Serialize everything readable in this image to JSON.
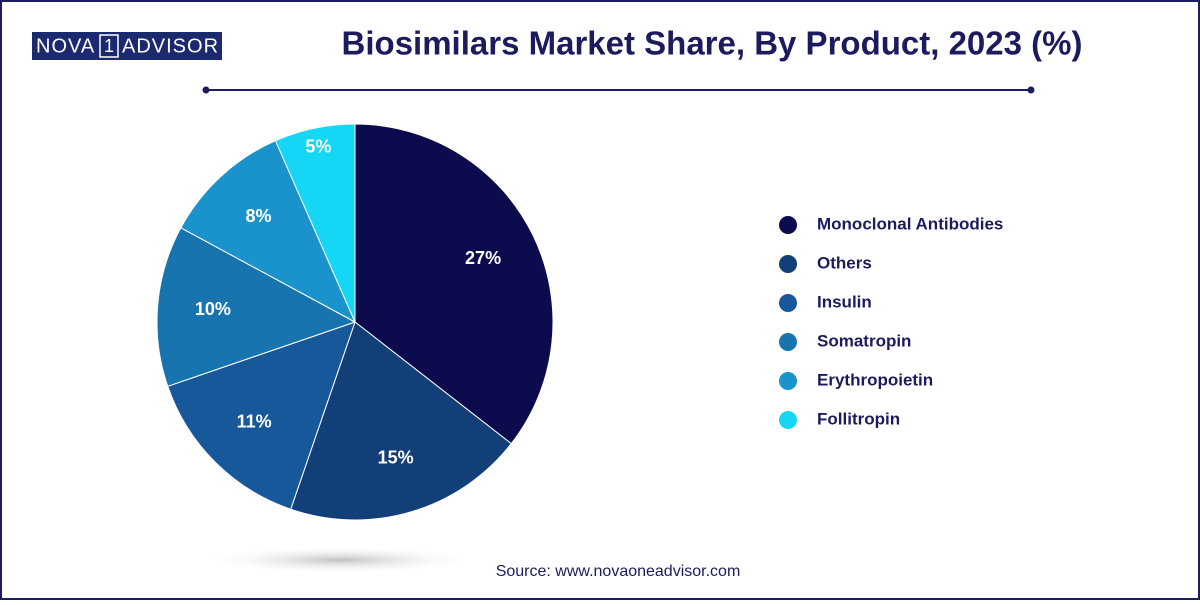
{
  "logo": {
    "left": "NOVA",
    "mark": "1",
    "right": "ADVISOR"
  },
  "chart_data": {
    "type": "pie",
    "title": "Biosimilars Market Share, By Product, 2023 (%)",
    "categories": [
      "Monoclonal Antibodies",
      "Others",
      "Insulin",
      "Somatropin",
      "Erythropoietin",
      "Follitropin"
    ],
    "values": [
      27,
      15,
      11,
      10,
      8,
      5
    ],
    "value_labels": [
      "27%",
      "15%",
      "11%",
      "10%",
      "8%",
      "5%"
    ],
    "colors": [
      "#0b0b4e",
      "#123f78",
      "#17589a",
      "#1874ae",
      "#1a93cc",
      "#16d6f5"
    ],
    "legend": "right",
    "source": "Source: www.novaoneadvisor.com"
  }
}
